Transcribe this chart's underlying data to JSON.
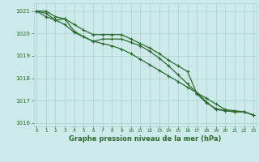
{
  "x": [
    0,
    1,
    2,
    3,
    4,
    5,
    6,
    7,
    8,
    9,
    10,
    11,
    12,
    13,
    14,
    15,
    16,
    17,
    18,
    19,
    20,
    21,
    22,
    23
  ],
  "series1": [
    1021.0,
    1020.9,
    1020.6,
    1020.4,
    1020.05,
    1019.85,
    1019.65,
    1019.75,
    1019.75,
    1019.75,
    1019.6,
    1019.45,
    1019.2,
    1018.9,
    1018.55,
    1018.15,
    1017.75,
    1017.35,
    1016.95,
    1016.6,
    1016.55,
    1016.5,
    1016.5,
    1016.35
  ],
  "series2": [
    1021.0,
    1021.0,
    1020.75,
    1020.65,
    1020.1,
    1019.85,
    1019.65,
    1019.55,
    1019.45,
    1019.3,
    1019.1,
    1018.85,
    1018.6,
    1018.35,
    1018.1,
    1017.85,
    1017.6,
    1017.35,
    1017.1,
    1016.85,
    1016.6,
    1016.55,
    1016.5,
    1016.35
  ],
  "series3": [
    1021.0,
    1020.75,
    1020.6,
    1020.65,
    1020.4,
    1020.15,
    1019.95,
    1019.95,
    1019.95,
    1019.95,
    1019.75,
    1019.55,
    1019.35,
    1019.1,
    1018.8,
    1018.55,
    1018.3,
    1017.3,
    1016.9,
    1016.65,
    1016.55,
    1016.5,
    1016.5,
    1016.35
  ],
  "line_color": "#2d6a2d",
  "bg_color": "#cceaea",
  "grid_color": "#aad0d0",
  "xlabel": "Graphe pression niveau de la mer (hPa)",
  "ylim": [
    1015.85,
    1021.35
  ],
  "xlim": [
    -0.3,
    23.3
  ],
  "yticks": [
    1016,
    1017,
    1018,
    1019,
    1020,
    1021
  ],
  "xticks": [
    0,
    1,
    2,
    3,
    4,
    5,
    6,
    7,
    8,
    9,
    10,
    11,
    12,
    13,
    14,
    15,
    16,
    17,
    18,
    19,
    20,
    21,
    22,
    23
  ],
  "marker_size": 2.5,
  "line_width": 0.9
}
